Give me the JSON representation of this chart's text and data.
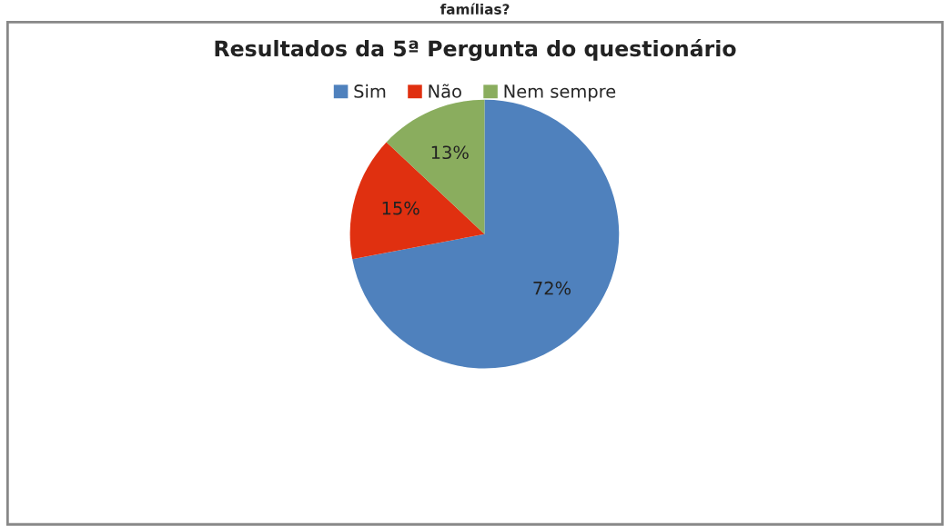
{
  "chart_data": {
    "type": "pie",
    "title": "Resultados da 5ª Pergunta do questionário",
    "annotations": [
      "famílias?"
    ],
    "categories": [
      "Sim",
      "Não",
      "Nem sempre"
    ],
    "values": [
      72,
      15,
      13
    ],
    "value_labels": [
      "72%",
      "15%",
      "13%"
    ],
    "colors": [
      "#4f81bd",
      "#e03010",
      "#8aad5e"
    ],
    "legend": "top"
  }
}
